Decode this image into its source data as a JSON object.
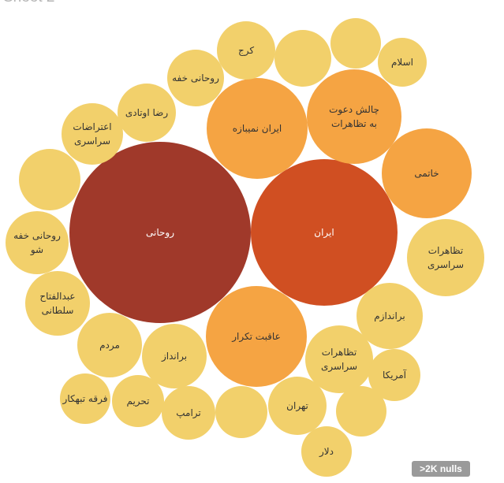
{
  "sheet": {
    "title": "Sheet 2"
  },
  "nulls_badge": ">2K nulls",
  "chart_data": {
    "type": "bubble",
    "color_scale": [
      "#f2d06b",
      "#f5a443",
      "#d04f22",
      "#a0392a"
    ],
    "bubbles": [
      {
        "label": "روحانی",
        "size_rank": 1,
        "color": "#a0392a"
      },
      {
        "label": "ایران",
        "size_rank": 2,
        "color": "#d04f22"
      },
      {
        "label": "ایران نمیبازه",
        "size_rank": 3,
        "color": "#f5a443"
      },
      {
        "label": "عاقبت تکرار",
        "size_rank": 3,
        "color": "#f5a443"
      },
      {
        "label": "چالش دعوت به تظاهرات",
        "size_rank": 3,
        "color": "#f5a443"
      },
      {
        "label": "خاتمی",
        "size_rank": 3,
        "color": "#f5a443"
      },
      {
        "label": "تظاهرات سراسری",
        "size_rank": 4,
        "color": "#f2d06b"
      },
      {
        "label": "براندازم",
        "size_rank": 4,
        "color": "#f2d06b"
      },
      {
        "label": "تظاهرات سراسری",
        "size_rank": 4,
        "color": "#f2d06b"
      },
      {
        "label": "آمریکا",
        "size_rank": 4,
        "color": "#f2d06b"
      },
      {
        "label": "",
        "size_rank": 4,
        "color": "#f2d06b"
      },
      {
        "label": "تهران",
        "size_rank": 4,
        "color": "#f2d06b"
      },
      {
        "label": "دلار",
        "size_rank": 4,
        "color": "#f2d06b"
      },
      {
        "label": "",
        "size_rank": 4,
        "color": "#f2d06b"
      },
      {
        "label": "ترامپ",
        "size_rank": 4,
        "color": "#f2d06b"
      },
      {
        "label": "تحریم",
        "size_rank": 4,
        "color": "#f2d06b"
      },
      {
        "label": "فرقه تبهکار",
        "size_rank": 4,
        "color": "#f2d06b"
      },
      {
        "label": "برانداز",
        "size_rank": 4,
        "color": "#f2d06b"
      },
      {
        "label": "مردم",
        "size_rank": 4,
        "color": "#f2d06b"
      },
      {
        "label": "عبدالفتاح سلطانی",
        "size_rank": 4,
        "color": "#f2d06b"
      },
      {
        "label": "روحانی خفه شو",
        "size_rank": 4,
        "color": "#f2d06b"
      },
      {
        "label": "",
        "size_rank": 4,
        "color": "#f2d06b"
      },
      {
        "label": "اعتراضات سراسری",
        "size_rank": 4,
        "color": "#f2d06b"
      },
      {
        "label": "رضا اوتادی",
        "size_rank": 4,
        "color": "#f2d06b"
      },
      {
        "label": "روحانی خفه",
        "size_rank": 4,
        "color": "#f2d06b"
      },
      {
        "label": "کرج",
        "size_rank": 4,
        "color": "#f2d06b"
      },
      {
        "label": "",
        "size_rank": 4,
        "color": "#f2d06b"
      },
      {
        "label": "",
        "size_rank": 4,
        "color": "#f2d06b"
      },
      {
        "label": "اسلام",
        "size_rank": 4,
        "color": "#f2d06b"
      }
    ]
  }
}
